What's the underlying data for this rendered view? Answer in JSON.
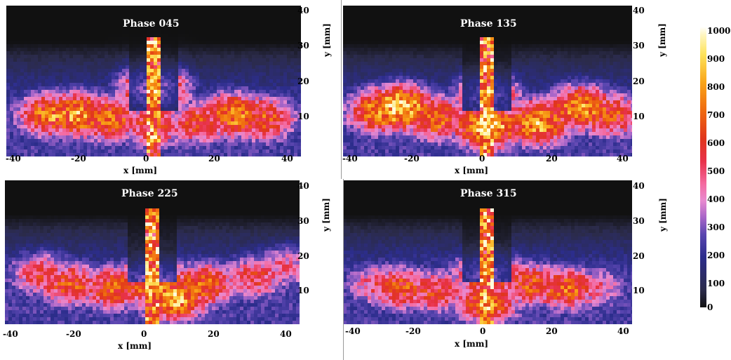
{
  "chart_data": [
    {
      "type": "heatmap",
      "title": "Phase 045",
      "xlabel": "x [mm]",
      "ylabel": "y [mm]",
      "xlim": [
        -40,
        40
      ],
      "ylim": [
        0,
        40
      ],
      "xticks": [
        "-40",
        "-20",
        "0",
        "20",
        "40"
      ],
      "yticks": [
        "10",
        "20",
        "30",
        "40"
      ],
      "description_points": [
        {
          "x": -28,
          "y": 11,
          "v": 750
        },
        {
          "x": -20,
          "y": 11,
          "v": 800
        },
        {
          "x": -12,
          "y": 10,
          "v": 700
        },
        {
          "x": 22,
          "y": 11,
          "v": 760
        },
        {
          "x": 30,
          "y": 10,
          "v": 650
        },
        {
          "x": 12,
          "y": 9,
          "v": 600
        },
        {
          "x": 0,
          "y": 18,
          "v": 850
        },
        {
          "x": 0,
          "y": 8,
          "v": 600
        }
      ]
    },
    {
      "type": "heatmap",
      "title": "Phase 135",
      "xlabel": "x [mm]",
      "ylabel": "y [mm]",
      "xlim": [
        -40,
        40
      ],
      "ylim": [
        0,
        40
      ],
      "xticks": [
        "-40",
        "-20",
        "0",
        "20",
        "40"
      ],
      "yticks": [
        "10",
        "20",
        "30",
        "40"
      ],
      "description_points": [
        {
          "x": -24,
          "y": 13,
          "v": 950
        },
        {
          "x": -30,
          "y": 12,
          "v": 750
        },
        {
          "x": -14,
          "y": 10,
          "v": 700
        },
        {
          "x": 14,
          "y": 9,
          "v": 850
        },
        {
          "x": 26,
          "y": 13,
          "v": 800
        },
        {
          "x": 34,
          "y": 11,
          "v": 650
        },
        {
          "x": 0,
          "y": 16,
          "v": 700
        },
        {
          "x": 0,
          "y": 8,
          "v": 900
        }
      ]
    },
    {
      "type": "heatmap",
      "title": "Phase 225",
      "xlabel": "x [mm]",
      "ylabel": "y [mm]",
      "xlim": [
        -40,
        40
      ],
      "ylim": [
        0,
        40
      ],
      "xticks": [
        "-40",
        "-20",
        "0",
        "20",
        "40"
      ],
      "yticks": [
        "10",
        "20",
        "30",
        "40"
      ],
      "description_points": [
        {
          "x": -30,
          "y": 14,
          "v": 550
        },
        {
          "x": -22,
          "y": 11,
          "v": 650
        },
        {
          "x": -10,
          "y": 10,
          "v": 700
        },
        {
          "x": 6,
          "y": 7,
          "v": 850
        },
        {
          "x": 14,
          "y": 11,
          "v": 700
        },
        {
          "x": 28,
          "y": 13,
          "v": 550
        },
        {
          "x": 36,
          "y": 16,
          "v": 450
        },
        {
          "x": 0,
          "y": 12,
          "v": 800
        }
      ]
    },
    {
      "type": "heatmap",
      "title": "Phase 315",
      "xlabel": "x [mm]",
      "ylabel": "y [mm]",
      "xlim": [
        -40,
        40
      ],
      "ylim": [
        0,
        40
      ],
      "xticks": [
        "-40",
        "-20",
        "0",
        "20",
        "40"
      ],
      "yticks": [
        "10",
        "20",
        "30",
        "40"
      ],
      "description_points": [
        {
          "x": -24,
          "y": 10,
          "v": 650
        },
        {
          "x": -14,
          "y": 9,
          "v": 600
        },
        {
          "x": -30,
          "y": 11,
          "v": 500
        },
        {
          "x": 12,
          "y": 11,
          "v": 650
        },
        {
          "x": 22,
          "y": 10,
          "v": 700
        },
        {
          "x": 30,
          "y": 10,
          "v": 450
        },
        {
          "x": 0,
          "y": 14,
          "v": 750
        },
        {
          "x": 0,
          "y": 6,
          "v": 700
        }
      ]
    }
  ],
  "colorbar": {
    "ticks": [
      "1000",
      "900",
      "800",
      "700",
      "600",
      "500",
      "400",
      "300",
      "200",
      "100",
      "0"
    ],
    "range": [
      0,
      1000
    ]
  }
}
